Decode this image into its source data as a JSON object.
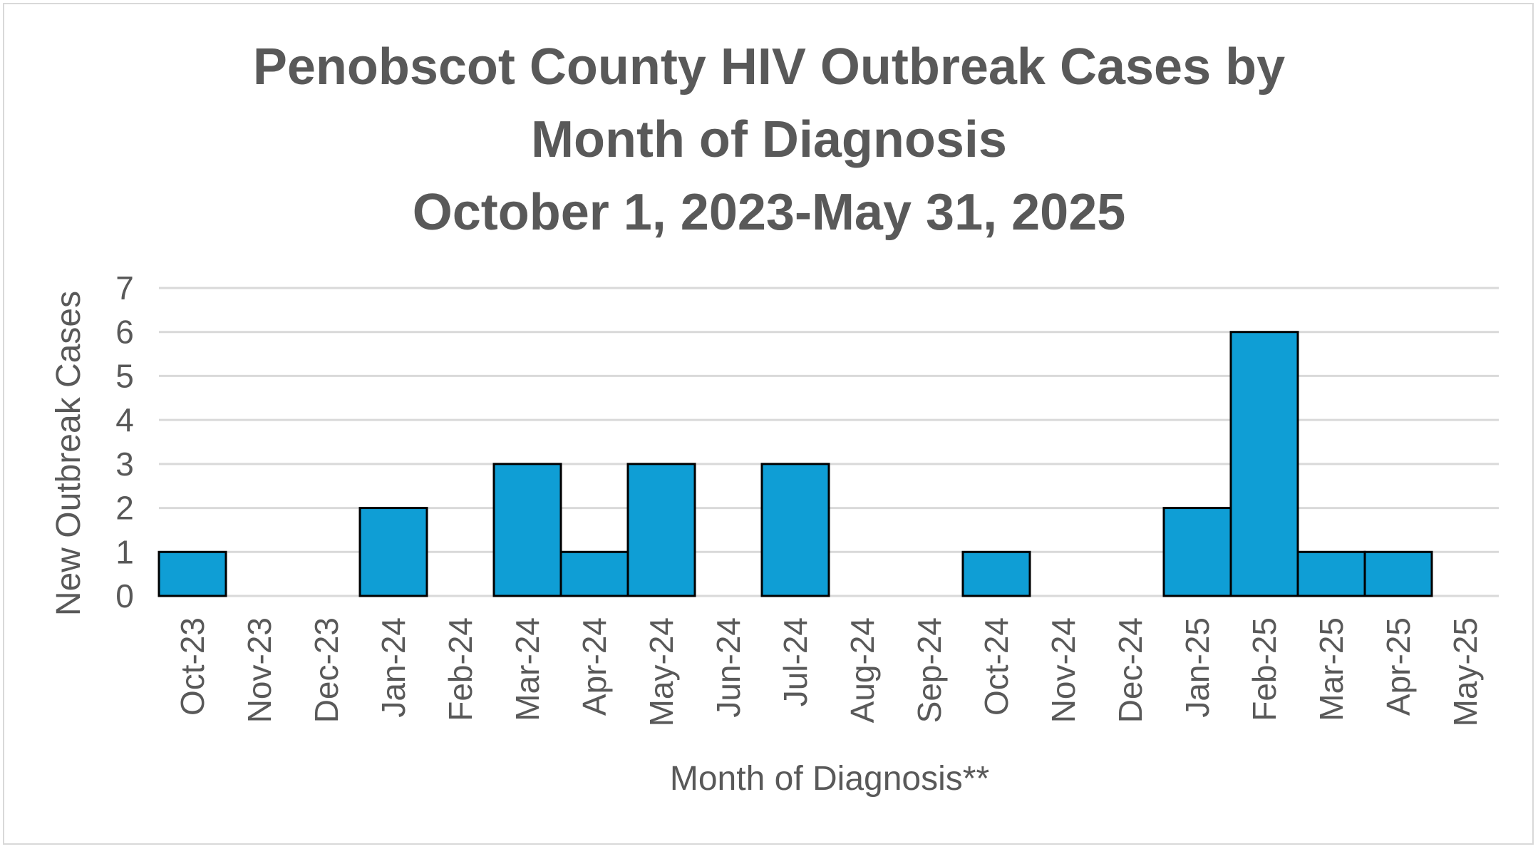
{
  "chart_data": {
    "type": "bar",
    "title_lines": [
      "Penobscot County HIV Outbreak Cases by",
      "Month of Diagnosis",
      "October 1, 2023-May 31, 2025"
    ],
    "xlabel": "Month of Diagnosis**",
    "ylabel": "New Outbreak Cases",
    "categories": [
      "Oct-23",
      "Nov-23",
      "Dec-23",
      "Jan-24",
      "Feb-24",
      "Mar-24",
      "Apr-24",
      "May-24",
      "Jun-24",
      "Jul-24",
      "Aug-24",
      "Sep-24",
      "Oct-24",
      "Nov-24",
      "Dec-24",
      "Jan-25",
      "Feb-25",
      "Mar-25",
      "Apr-25",
      "May-25"
    ],
    "values": [
      1,
      0,
      0,
      2,
      0,
      3,
      1,
      3,
      0,
      3,
      0,
      0,
      1,
      0,
      0,
      2,
      6,
      1,
      1,
      0
    ],
    "ylim": [
      0,
      7
    ],
    "yticks": [
      0,
      1,
      2,
      3,
      4,
      5,
      6,
      7
    ],
    "grid": true,
    "legend": "none",
    "bar_color": "#0f9ed5",
    "bar_edge_color": "#000000"
  }
}
